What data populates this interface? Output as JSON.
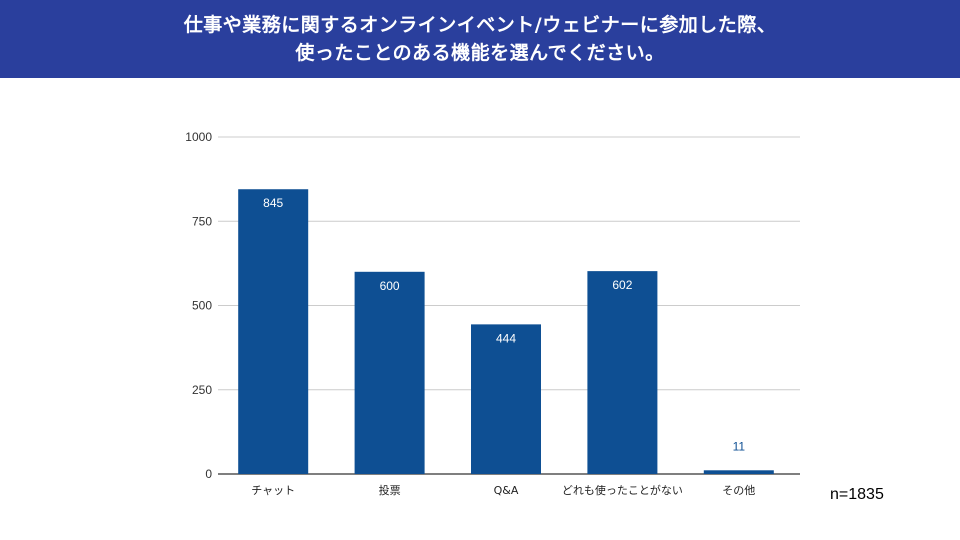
{
  "header": {
    "title_line1": "仕事や業務に関するオンラインイベント/ウェビナーに参加した際、",
    "title_line2": "使ったことのある機能を選んでください。",
    "background_color": "#2a3f9d"
  },
  "sample_size": "n=1835",
  "chart_data": {
    "type": "bar",
    "categories": [
      "チャット",
      "投票",
      "Q&A",
      "どれも使ったことがない",
      "その他"
    ],
    "values": [
      845,
      600,
      444,
      602,
      11
    ],
    "ylim": [
      0,
      1000
    ],
    "yticks": [
      0,
      250,
      500,
      750,
      1000
    ],
    "grid": true,
    "bar_color": "#0e4f93",
    "title": "",
    "xlabel": "",
    "ylabel": ""
  }
}
